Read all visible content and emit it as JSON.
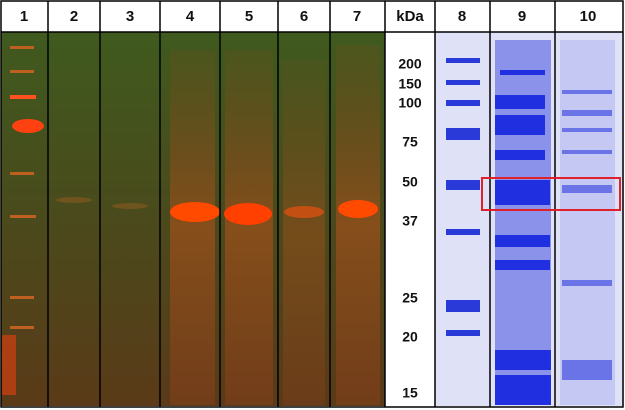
{
  "lanes": [
    "1",
    "2",
    "3",
    "4",
    "5",
    "6",
    "7",
    "8",
    "9",
    "10"
  ],
  "unit": "kDa",
  "markers": [
    "200",
    "150",
    "100",
    "75",
    "50",
    "37",
    "25",
    "20",
    "15"
  ]
}
